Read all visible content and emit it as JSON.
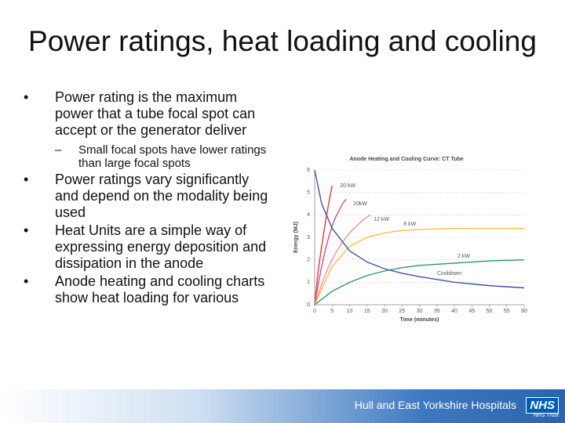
{
  "slide": {
    "title": "Power ratings, heat loading and cooling",
    "bullets": [
      {
        "text": "Power rating is the maximum power that a tube focal spot can accept or the generator deliver",
        "subs": [
          "Small focal spots have lower ratings than large focal spots"
        ]
      },
      {
        "text": "Power ratings vary significantly and depend on the modality being used",
        "subs": []
      },
      {
        "text": "Heat Units are a simple way of expressing energy deposition and dissipation in the anode",
        "subs": []
      },
      {
        "text": "Anode heating and cooling charts show heat loading for various",
        "subs": []
      }
    ]
  },
  "chart_data": {
    "type": "line",
    "title": "Anode Heating and Cooling Curve: CT Tube",
    "x_label": "Time (minutes)",
    "y_label": "Energy (MJ)",
    "xlim": [
      0,
      60
    ],
    "xticks": [
      0,
      5,
      10,
      15,
      20,
      25,
      30,
      35,
      40,
      45,
      50,
      55,
      60
    ],
    "ylim": [
      0,
      6
    ],
    "yticks": [
      0,
      1,
      2,
      3,
      4,
      5,
      6
    ],
    "grid": true,
    "series": [
      {
        "name": "20 kW",
        "color": "#e03a3a",
        "x": [
          0,
          1,
          2,
          3,
          4,
          5
        ],
        "values": [
          0,
          1.5,
          2.6,
          3.6,
          4.5,
          5.3
        ]
      },
      {
        "name": "20kW",
        "color": "#d8507a",
        "x": [
          0,
          1,
          2,
          3,
          4,
          5,
          6,
          7,
          8,
          9
        ],
        "values": [
          0,
          0.9,
          1.7,
          2.4,
          3.0,
          3.5,
          3.9,
          4.2,
          4.5,
          4.7
        ]
      },
      {
        "name": "12 kW",
        "color": "#f2909a",
        "x": [
          0,
          2,
          4,
          6,
          8,
          10,
          12,
          14,
          16
        ],
        "values": [
          0,
          0.9,
          1.7,
          2.3,
          2.8,
          3.2,
          3.5,
          3.8,
          4.0
        ]
      },
      {
        "name": "8 kW",
        "color": "#f0c040",
        "x": [
          0,
          5,
          10,
          15,
          20,
          25,
          30,
          40,
          50,
          60
        ],
        "values": [
          0,
          1.7,
          2.6,
          3.0,
          3.2,
          3.3,
          3.35,
          3.4,
          3.4,
          3.4
        ]
      },
      {
        "name": "2 kW",
        "color": "#2a9a5a",
        "x": [
          0,
          5,
          10,
          15,
          20,
          25,
          30,
          40,
          50,
          60
        ],
        "values": [
          0,
          0.6,
          1.0,
          1.3,
          1.5,
          1.65,
          1.75,
          1.85,
          1.95,
          2.0
        ]
      },
      {
        "name": "Cooldown",
        "color": "#4050a8",
        "x": [
          0,
          2,
          5,
          10,
          15,
          20,
          25,
          30,
          40,
          50,
          60
        ],
        "values": [
          6,
          4.5,
          3.4,
          2.4,
          1.9,
          1.6,
          1.4,
          1.25,
          1.0,
          0.85,
          0.75
        ]
      }
    ]
  },
  "footer": {
    "organization": "Hull and East Yorkshire Hospitals",
    "logo": "NHS",
    "subtitle": "NHS Trust"
  }
}
